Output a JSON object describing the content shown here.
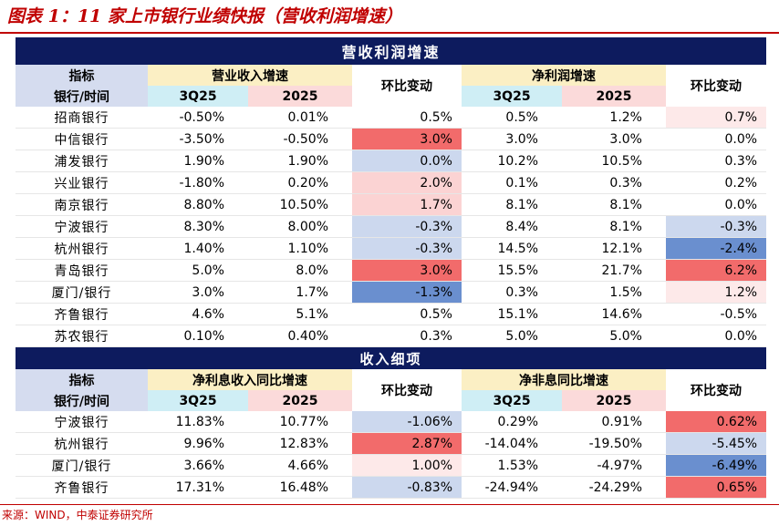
{
  "title": "图表 1：11 家上市银行业绩快报（营收利润增速）",
  "source": "来源：WIND，中泰证券研究所",
  "colors": {
    "red_strong": "#f26b6b",
    "red_light": "#fbd3d3",
    "red_pale": "#fde9e9",
    "blue_strong": "#6a8fcf",
    "blue_light": "#ccd8ee",
    "neutral": "#ffffff"
  },
  "section1": {
    "banner": "营收利润增速",
    "h_idx": "指标",
    "h_bank": "银行/时间",
    "g1": "营业收入增速",
    "g2": "净利润增速",
    "c_q3": "3Q25",
    "c_25": "2025",
    "c_qoq": "环比变动",
    "rows": [
      {
        "bank": "招商银行",
        "rq3": "-0.50%",
        "r25": "0.01%",
        "rchg": "0.5%",
        "rc": "neutral",
        "nq3": "0.5%",
        "n25": "1.2%",
        "nchg": "0.7%",
        "nc": "red_pale"
      },
      {
        "bank": "中信银行",
        "rq3": "-3.50%",
        "r25": "-0.50%",
        "rchg": "3.0%",
        "rc": "red_strong",
        "nq3": "3.0%",
        "n25": "3.0%",
        "nchg": "0.0%",
        "nc": "neutral"
      },
      {
        "bank": "浦发银行",
        "rq3": "1.90%",
        "r25": "1.90%",
        "rchg": "0.0%",
        "rc": "blue_light",
        "nq3": "10.2%",
        "n25": "10.5%",
        "nchg": "0.3%",
        "nc": "neutral"
      },
      {
        "bank": "兴业银行",
        "rq3": "-1.80%",
        "r25": "0.20%",
        "rchg": "2.0%",
        "rc": "red_light",
        "nq3": "0.1%",
        "n25": "0.3%",
        "nchg": "0.2%",
        "nc": "neutral"
      },
      {
        "bank": "南京银行",
        "rq3": "8.80%",
        "r25": "10.50%",
        "rchg": "1.7%",
        "rc": "red_light",
        "nq3": "8.1%",
        "n25": "8.1%",
        "nchg": "0.0%",
        "nc": "neutral"
      },
      {
        "bank": "宁波银行",
        "rq3": "8.30%",
        "r25": "8.00%",
        "rchg": "-0.3%",
        "rc": "blue_light",
        "nq3": "8.4%",
        "n25": "8.1%",
        "nchg": "-0.3%",
        "nc": "blue_light"
      },
      {
        "bank": "杭州银行",
        "rq3": "1.40%",
        "r25": "1.10%",
        "rchg": "-0.3%",
        "rc": "blue_light",
        "nq3": "14.5%",
        "n25": "12.1%",
        "nchg": "-2.4%",
        "nc": "blue_strong"
      },
      {
        "bank": "青岛银行",
        "rq3": "5.0%",
        "r25": "8.0%",
        "rchg": "3.0%",
        "rc": "red_strong",
        "nq3": "15.5%",
        "n25": "21.7%",
        "nchg": "6.2%",
        "nc": "red_strong"
      },
      {
        "bank": "厦门/银行",
        "rq3": "3.0%",
        "r25": "1.7%",
        "rchg": "-1.3%",
        "rc": "blue_strong",
        "nq3": "0.3%",
        "n25": "1.5%",
        "nchg": "1.2%",
        "nc": "red_pale"
      },
      {
        "bank": "齐鲁银行",
        "rq3": "4.6%",
        "r25": "5.1%",
        "rchg": "0.5%",
        "rc": "neutral",
        "nq3": "15.1%",
        "n25": "14.6%",
        "nchg": "-0.5%",
        "nc": "neutral"
      },
      {
        "bank": "苏农银行",
        "rq3": "0.10%",
        "r25": "0.40%",
        "rchg": "0.3%",
        "rc": "neutral",
        "nq3": "5.0%",
        "n25": "5.0%",
        "nchg": "0.0%",
        "nc": "neutral"
      }
    ]
  },
  "section2": {
    "banner": "收入细项",
    "h_idx": "指标",
    "h_bank": "银行/时间",
    "g1": "净利息收入同比增速",
    "g2": "净非息同比增速",
    "c_q3": "3Q25",
    "c_25": "2025",
    "c_qoq": "环比变动",
    "rows": [
      {
        "bank": "宁波银行",
        "aq3": "11.83%",
        "a25": "10.77%",
        "achg": "-1.06%",
        "ac": "blue_light",
        "bq3": "0.29%",
        "b25": "0.91%",
        "bchg": "0.62%",
        "bc": "red_strong"
      },
      {
        "bank": "杭州银行",
        "aq3": "9.96%",
        "a25": "12.83%",
        "achg": "2.87%",
        "ac": "red_strong",
        "bq3": "-14.04%",
        "b25": "-19.50%",
        "bchg": "-5.45%",
        "bc": "blue_light"
      },
      {
        "bank": "厦门/银行",
        "aq3": "3.66%",
        "a25": "4.66%",
        "achg": "1.00%",
        "ac": "red_pale",
        "bq3": "1.53%",
        "b25": "-4.97%",
        "bchg": "-6.49%",
        "bc": "blue_strong"
      },
      {
        "bank": "齐鲁银行",
        "aq3": "17.31%",
        "a25": "16.48%",
        "achg": "-0.83%",
        "ac": "blue_light",
        "bq3": "-24.94%",
        "b25": "-24.29%",
        "bchg": "0.65%",
        "bc": "red_strong"
      }
    ]
  }
}
